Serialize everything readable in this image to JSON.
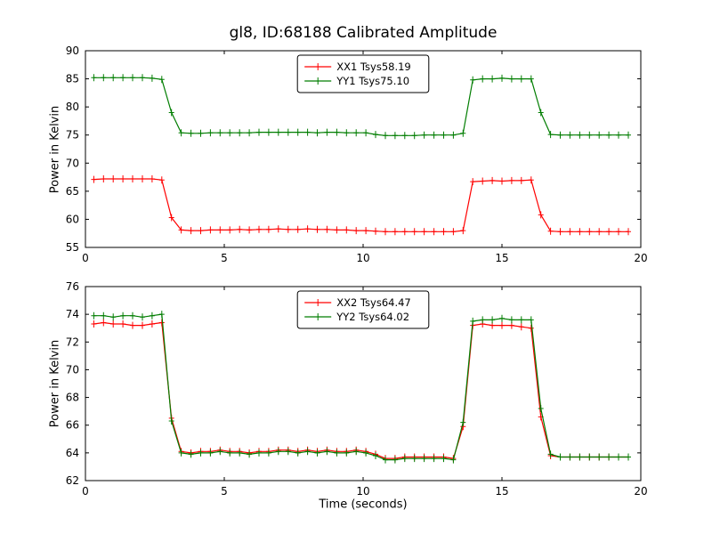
{
  "chart_data": [
    {
      "type": "line",
      "title": "gl8, ID:68188 Calibrated Amplitude",
      "xlabel": "",
      "ylabel": "Power in Kelvin",
      "xlim": [
        0,
        20
      ],
      "ylim": [
        55,
        90
      ],
      "xticks": [
        0,
        5,
        10,
        15,
        20
      ],
      "yticks": [
        55,
        60,
        65,
        70,
        75,
        80,
        85,
        90
      ],
      "grid": false,
      "legend_position": "upper center",
      "marker": "plus",
      "x": [
        0.3,
        0.65,
        1,
        1.35,
        1.7,
        2.05,
        2.4,
        2.75,
        3.1,
        3.45,
        3.8,
        4.15,
        4.5,
        4.85,
        5.2,
        5.55,
        5.9,
        6.25,
        6.6,
        6.95,
        7.3,
        7.65,
        8,
        8.35,
        8.7,
        9.05,
        9.4,
        9.75,
        10.1,
        10.45,
        10.8,
        11.15,
        11.5,
        11.85,
        12.2,
        12.55,
        12.9,
        13.25,
        13.6,
        13.95,
        14.3,
        14.65,
        15,
        15.35,
        15.7,
        16.05,
        16.4,
        16.75,
        17.1,
        17.45,
        17.8,
        18.15,
        18.5,
        18.85,
        19.2,
        19.55
      ],
      "series": [
        {
          "name": "XX1 Tsys58.19",
          "color": "#ff0000",
          "values": [
            67.1,
            67.2,
            67.2,
            67.2,
            67.2,
            67.2,
            67.2,
            67.0,
            60.3,
            58.1,
            58.0,
            58.0,
            58.1,
            58.1,
            58.1,
            58.2,
            58.1,
            58.2,
            58.2,
            58.3,
            58.2,
            58.2,
            58.3,
            58.2,
            58.2,
            58.1,
            58.1,
            58.0,
            58.0,
            57.9,
            57.8,
            57.8,
            57.8,
            57.8,
            57.8,
            57.8,
            57.8,
            57.8,
            58.0,
            66.7,
            66.8,
            66.9,
            66.8,
            66.9,
            66.9,
            67.0,
            60.8,
            57.9,
            57.8,
            57.8,
            57.8,
            57.8,
            57.8,
            57.8,
            57.8,
            57.8
          ]
        },
        {
          "name": "YY1 Tsys75.10",
          "color": "#007d00",
          "values": [
            85.2,
            85.2,
            85.2,
            85.2,
            85.2,
            85.2,
            85.1,
            84.9,
            79.0,
            75.4,
            75.3,
            75.3,
            75.4,
            75.4,
            75.4,
            75.4,
            75.4,
            75.5,
            75.5,
            75.5,
            75.5,
            75.5,
            75.5,
            75.4,
            75.5,
            75.5,
            75.4,
            75.4,
            75.4,
            75.1,
            74.9,
            74.9,
            74.9,
            74.9,
            75.0,
            75.0,
            75.0,
            75.0,
            75.3,
            84.8,
            85.0,
            85.0,
            85.1,
            85.0,
            85.0,
            85.0,
            79.0,
            75.1,
            75.0,
            75.0,
            75.0,
            75.0,
            75.0,
            75.0,
            75.0,
            75.0
          ]
        }
      ]
    },
    {
      "type": "line",
      "title": "",
      "xlabel": "Time (seconds)",
      "ylabel": "Power in Kelvin",
      "xlim": [
        0,
        20
      ],
      "ylim": [
        62,
        76
      ],
      "xticks": [
        0,
        5,
        10,
        15,
        20
      ],
      "yticks": [
        62,
        64,
        66,
        68,
        70,
        72,
        74,
        76
      ],
      "grid": false,
      "legend_position": "upper center",
      "marker": "plus",
      "x": [
        0.3,
        0.65,
        1,
        1.35,
        1.7,
        2.05,
        2.4,
        2.75,
        3.1,
        3.45,
        3.8,
        4.15,
        4.5,
        4.85,
        5.2,
        5.55,
        5.9,
        6.25,
        6.6,
        6.95,
        7.3,
        7.65,
        8,
        8.35,
        8.7,
        9.05,
        9.4,
        9.75,
        10.1,
        10.45,
        10.8,
        11.15,
        11.5,
        11.85,
        12.2,
        12.55,
        12.9,
        13.25,
        13.6,
        13.95,
        14.3,
        14.65,
        15,
        15.35,
        15.7,
        16.05,
        16.4,
        16.75,
        17.1,
        17.45,
        17.8,
        18.15,
        18.5,
        18.85,
        19.2,
        19.55
      ],
      "series": [
        {
          "name": "XX2 Tsys64.47",
          "color": "#ff0000",
          "values": [
            73.3,
            73.4,
            73.3,
            73.3,
            73.2,
            73.2,
            73.3,
            73.4,
            66.5,
            64.1,
            64.0,
            64.1,
            64.1,
            64.2,
            64.1,
            64.1,
            64.0,
            64.1,
            64.1,
            64.2,
            64.2,
            64.1,
            64.2,
            64.1,
            64.2,
            64.1,
            64.1,
            64.2,
            64.1,
            63.9,
            63.6,
            63.6,
            63.7,
            63.7,
            63.7,
            63.7,
            63.7,
            63.6,
            65.9,
            73.2,
            73.3,
            73.2,
            73.2,
            73.2,
            73.1,
            73.0,
            66.6,
            63.8,
            63.7,
            63.7,
            63.7,
            63.7,
            63.7,
            63.7,
            63.7,
            63.7
          ]
        },
        {
          "name": "YY2 Tsys64.02",
          "color": "#007d00",
          "values": [
            73.9,
            73.9,
            73.8,
            73.9,
            73.9,
            73.8,
            73.9,
            74.0,
            66.3,
            64.0,
            63.9,
            64.0,
            64.0,
            64.1,
            64.0,
            64.0,
            63.9,
            64.0,
            64.0,
            64.1,
            64.1,
            64.0,
            64.1,
            64.0,
            64.1,
            64.0,
            64.0,
            64.1,
            64.0,
            63.8,
            63.5,
            63.5,
            63.6,
            63.6,
            63.6,
            63.6,
            63.6,
            63.5,
            66.2,
            73.5,
            73.6,
            73.6,
            73.7,
            73.6,
            73.6,
            73.6,
            67.2,
            63.9,
            63.7,
            63.7,
            63.7,
            63.7,
            63.7,
            63.7,
            63.7,
            63.7
          ]
        }
      ]
    }
  ]
}
